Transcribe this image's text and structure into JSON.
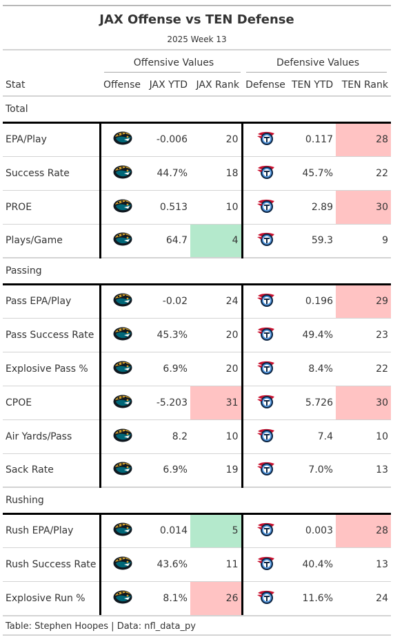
{
  "chart_data": {
    "type": "table",
    "title": "JAX Offense vs TEN Defense",
    "subtitle": "2025 Week 13",
    "spanners": {
      "offense": "Offensive Values",
      "defense": "Defensive Values"
    },
    "columns": {
      "stat": "Stat",
      "offense": "Offense",
      "off_ytd": "JAX YTD",
      "off_rank": "JAX Rank",
      "defense": "Defense",
      "def_ytd": "TEN YTD",
      "def_rank": "TEN Rank"
    },
    "icons": {
      "offense": "jaguars-logo-icon",
      "defense": "titans-logo-icon"
    },
    "highlight_colors": {
      "bad": "#ffc3c3",
      "good": "#b4e9cc"
    },
    "groups": [
      {
        "name": "Total",
        "rows": [
          {
            "stat": "EPA/Play",
            "off_ytd": "-0.006",
            "off_rank": 20,
            "def_ytd": "0.117",
            "def_rank": 28,
            "off_hl": "",
            "def_hl": "bad"
          },
          {
            "stat": "Success Rate",
            "off_ytd": "44.7%",
            "off_rank": 18,
            "def_ytd": "45.7%",
            "def_rank": 22,
            "off_hl": "",
            "def_hl": ""
          },
          {
            "stat": "PROE",
            "off_ytd": "0.513",
            "off_rank": 10,
            "def_ytd": "2.89",
            "def_rank": 30,
            "off_hl": "",
            "def_hl": "bad"
          },
          {
            "stat": "Plays/Game",
            "off_ytd": "64.7",
            "off_rank": 4,
            "def_ytd": "59.3",
            "def_rank": 9,
            "off_hl": "good",
            "def_hl": ""
          }
        ]
      },
      {
        "name": "Passing",
        "rows": [
          {
            "stat": "Pass EPA/Play",
            "off_ytd": "-0.02",
            "off_rank": 24,
            "def_ytd": "0.196",
            "def_rank": 29,
            "off_hl": "",
            "def_hl": "bad"
          },
          {
            "stat": "Pass Success Rate",
            "off_ytd": "45.3%",
            "off_rank": 20,
            "def_ytd": "49.4%",
            "def_rank": 23,
            "off_hl": "",
            "def_hl": ""
          },
          {
            "stat": "Explosive Pass %",
            "off_ytd": "6.9%",
            "off_rank": 20,
            "def_ytd": "8.4%",
            "def_rank": 22,
            "off_hl": "",
            "def_hl": ""
          },
          {
            "stat": "CPOE",
            "off_ytd": "-5.203",
            "off_rank": 31,
            "def_ytd": "5.726",
            "def_rank": 30,
            "off_hl": "bad",
            "def_hl": "bad"
          },
          {
            "stat": "Air Yards/Pass",
            "off_ytd": "8.2",
            "off_rank": 10,
            "def_ytd": "7.4",
            "def_rank": 10,
            "off_hl": "",
            "def_hl": ""
          },
          {
            "stat": "Sack Rate",
            "off_ytd": "6.9%",
            "off_rank": 19,
            "def_ytd": "7.0%",
            "def_rank": 13,
            "off_hl": "",
            "def_hl": ""
          }
        ]
      },
      {
        "name": "Rushing",
        "rows": [
          {
            "stat": "Rush EPA/Play",
            "off_ytd": "0.014",
            "off_rank": 5,
            "def_ytd": "0.003",
            "def_rank": 28,
            "off_hl": "good",
            "def_hl": "bad"
          },
          {
            "stat": "Rush Success Rate",
            "off_ytd": "43.6%",
            "off_rank": 11,
            "def_ytd": "40.4%",
            "def_rank": 13,
            "off_hl": "",
            "def_hl": ""
          },
          {
            "stat": "Explosive Run %",
            "off_ytd": "8.1%",
            "off_rank": 26,
            "def_ytd": "11.6%",
            "def_rank": 24,
            "off_hl": "bad",
            "def_hl": ""
          }
        ]
      }
    ],
    "source_note": "Table: Stephen Hoopes | Data: nfl_data_py"
  }
}
